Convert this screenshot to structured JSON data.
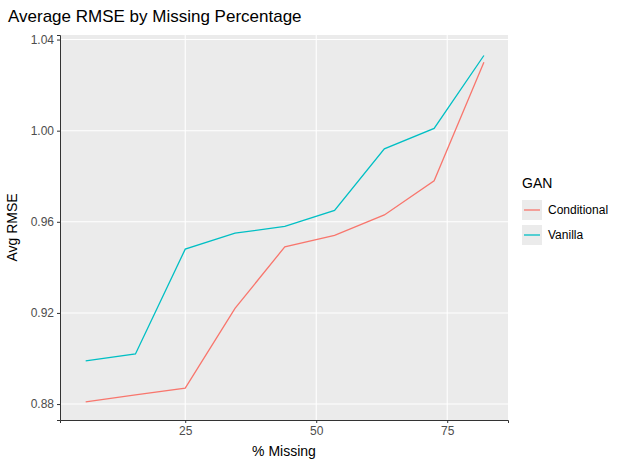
{
  "chart_data": {
    "type": "line",
    "title": "Average RMSE by Missing Percentage",
    "x_label": "% Missing",
    "y_label": "Avg RMSE",
    "legend_title": "GAN",
    "x": [
      6,
      15.5,
      25,
      34.5,
      44,
      53.5,
      63,
      72.5,
      82
    ],
    "series": [
      {
        "name": "Conditional",
        "color": "#F8766D",
        "values": [
          0.881,
          0.884,
          0.887,
          0.922,
          0.949,
          0.954,
          0.963,
          0.978,
          1.03
        ]
      },
      {
        "name": "Vanilla",
        "color": "#00BFC4",
        "values": [
          0.899,
          0.902,
          0.948,
          0.955,
          0.958,
          0.965,
          0.992,
          1.001,
          1.033
        ]
      }
    ],
    "xlim": [
      1.1,
      86.6
    ],
    "xticks": [
      25,
      50,
      75
    ],
    "ylim": [
      0.873,
      1.042
    ],
    "yticks": [
      {
        "value": 0.88,
        "label": "0.88"
      },
      {
        "value": 0.92,
        "label": "0.92"
      },
      {
        "value": 0.96,
        "label": "0.96"
      },
      {
        "value": 1.0,
        "label": "1.00"
      },
      {
        "value": 1.04,
        "label": "1.04"
      }
    ],
    "grid": true,
    "legend": "right"
  }
}
